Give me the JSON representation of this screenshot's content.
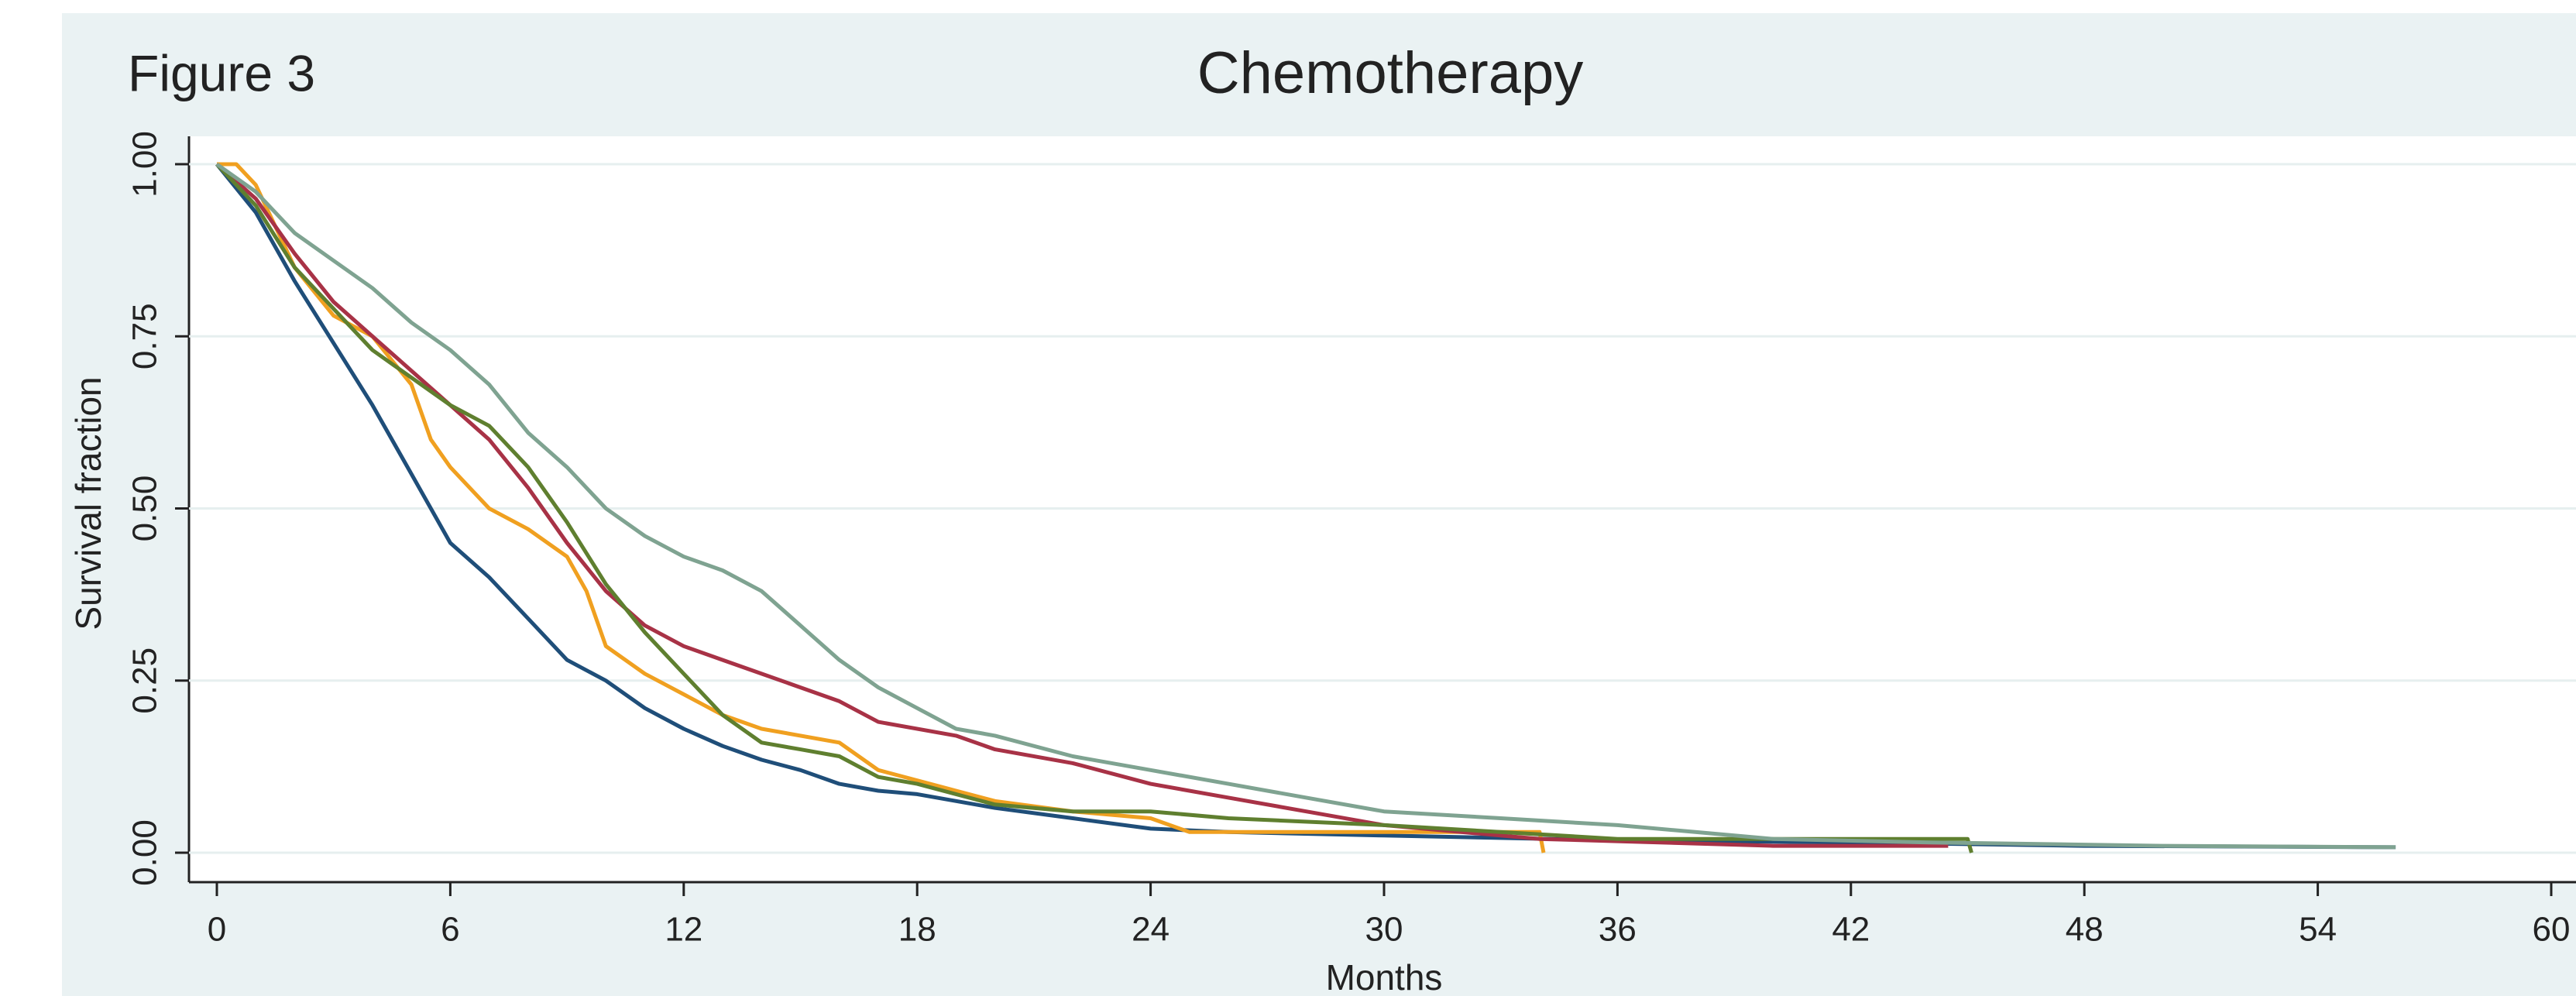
{
  "chart_data": {
    "type": "line",
    "label": "Figure 3",
    "title": "Chemotherapy",
    "x_label": "Months",
    "y_label": "Survival fraction",
    "xlim": [
      0,
      60
    ],
    "xticks": [
      0,
      6,
      12,
      18,
      24,
      30,
      36,
      42,
      48,
      54,
      60
    ],
    "ylim": [
      0,
      1
    ],
    "yticks": [
      {
        "value": 0,
        "label": "0.00"
      },
      0.25,
      {
        "value": 0.5,
        "label": "0.50"
      },
      0.75,
      {
        "value": 1,
        "label": "1.00"
      }
    ],
    "grid": true,
    "series": [
      {
        "color": "#1f4e79",
        "x": [
          0,
          1,
          2,
          3,
          4,
          5,
          6,
          7,
          8,
          9,
          10,
          11,
          12,
          13,
          14,
          15,
          16,
          17,
          18,
          20,
          22,
          24,
          26,
          30,
          36,
          42,
          48,
          56
        ],
        "values": [
          1,
          0.93,
          0.83,
          0.74,
          0.65,
          0.55,
          0.45,
          0.4,
          0.34,
          0.28,
          0.25,
          0.21,
          0.18,
          0.155,
          0.135,
          0.12,
          0.1,
          0.09,
          0.085,
          0.065,
          0.05,
          0.035,
          0.03,
          0.025,
          0.018,
          0.015,
          0.01,
          0.008
        ]
      },
      {
        "color": "#f0a020",
        "x": [
          0,
          0.5,
          1,
          2,
          3,
          4,
          5,
          5.5,
          6,
          7,
          8,
          9,
          9.5,
          10,
          11,
          12,
          13,
          14,
          16,
          17,
          19,
          20,
          22,
          24,
          25,
          30,
          34,
          34.1
        ],
        "values": [
          1,
          1,
          0.97,
          0.85,
          0.78,
          0.75,
          0.68,
          0.6,
          0.56,
          0.5,
          0.47,
          0.43,
          0.38,
          0.3,
          0.26,
          0.23,
          0.2,
          0.18,
          0.16,
          0.12,
          0.09,
          0.075,
          0.06,
          0.05,
          0.03,
          0.03,
          0.03,
          0
        ]
      },
      {
        "color": "#a83246",
        "x": [
          0,
          1,
          2,
          3,
          4,
          5,
          6,
          7,
          8,
          9,
          10,
          11,
          12,
          13,
          14,
          15,
          16,
          17,
          19,
          20,
          22,
          24,
          26,
          28,
          30,
          34,
          40,
          44.5
        ],
        "values": [
          1,
          0.95,
          0.87,
          0.8,
          0.75,
          0.7,
          0.65,
          0.6,
          0.53,
          0.45,
          0.38,
          0.33,
          0.3,
          0.28,
          0.26,
          0.24,
          0.22,
          0.19,
          0.17,
          0.15,
          0.13,
          0.1,
          0.08,
          0.06,
          0.04,
          0.02,
          0.01,
          0.01
        ]
      },
      {
        "color": "#5f7f2f",
        "x": [
          0,
          1,
          2,
          3,
          4,
          5,
          6,
          7,
          8,
          9,
          10,
          11,
          12,
          13,
          14,
          15,
          16,
          17,
          18,
          20,
          22,
          24,
          26,
          30,
          36,
          42,
          45,
          45.1
        ],
        "values": [
          1,
          0.94,
          0.85,
          0.79,
          0.73,
          0.69,
          0.65,
          0.62,
          0.56,
          0.48,
          0.39,
          0.32,
          0.26,
          0.2,
          0.16,
          0.15,
          0.14,
          0.11,
          0.1,
          0.07,
          0.06,
          0.06,
          0.05,
          0.04,
          0.02,
          0.02,
          0.02,
          0
        ]
      },
      {
        "color": "#7fa391",
        "x": [
          0,
          1,
          2,
          3,
          4,
          5,
          6,
          7,
          8,
          9,
          10,
          11,
          12,
          13,
          14,
          15,
          16,
          17,
          18,
          19,
          20,
          22,
          24,
          26,
          28,
          30,
          33,
          36,
          38,
          40,
          44,
          50,
          56
        ],
        "values": [
          1,
          0.96,
          0.9,
          0.86,
          0.82,
          0.77,
          0.73,
          0.68,
          0.61,
          0.56,
          0.5,
          0.46,
          0.43,
          0.41,
          0.38,
          0.33,
          0.28,
          0.24,
          0.21,
          0.18,
          0.17,
          0.14,
          0.12,
          0.1,
          0.08,
          0.06,
          0.05,
          0.04,
          0.03,
          0.02,
          0.015,
          0.01,
          0.008
        ]
      }
    ]
  }
}
